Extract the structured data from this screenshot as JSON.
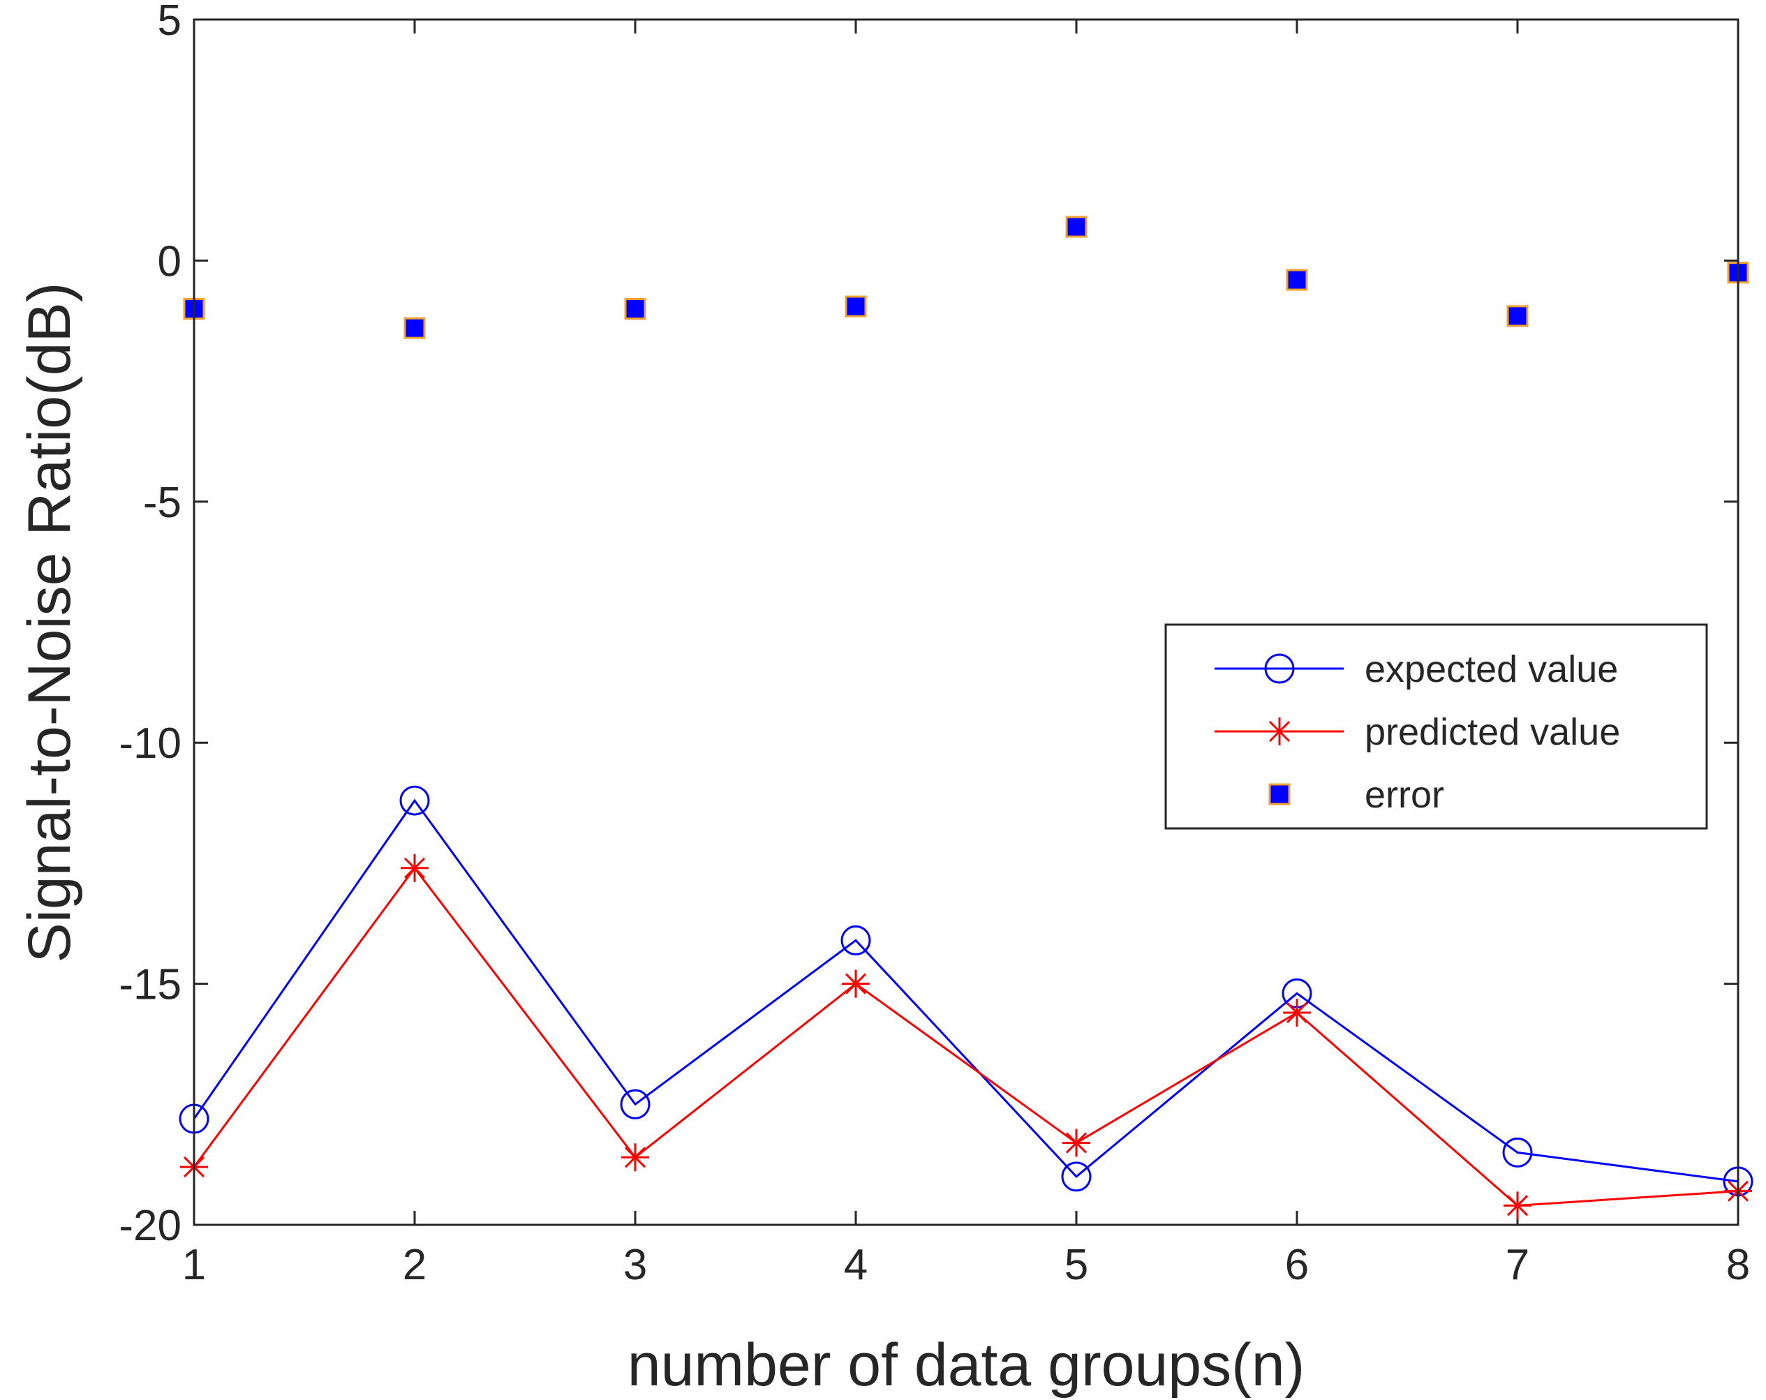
{
  "chart_data": {
    "type": "line",
    "title": "",
    "xlabel": "number of data groups(n)",
    "ylabel": "Signal-to-Noise Ratio(dB)",
    "xlim": [
      1,
      8
    ],
    "ylim": [
      -20,
      5
    ],
    "xticks": [
      1,
      2,
      3,
      4,
      5,
      6,
      7,
      8
    ],
    "yticks": [
      5,
      0,
      -5,
      -10,
      -15,
      -20
    ],
    "grid": false,
    "legend_position": "middle-right",
    "x": [
      1,
      2,
      3,
      4,
      5,
      6,
      7,
      8
    ],
    "series": [
      {
        "name": "expected value",
        "marker": "circle",
        "line": true,
        "color": "#0000ff",
        "values": [
          -17.8,
          -11.2,
          -17.5,
          -14.1,
          -19.0,
          -15.2,
          -18.5,
          -19.1
        ]
      },
      {
        "name": "predicted value",
        "marker": "asterisk",
        "line": true,
        "color": "#ff0000",
        "values": [
          -18.8,
          -12.6,
          -18.6,
          -15.0,
          -18.3,
          -15.6,
          -19.6,
          -19.3
        ]
      },
      {
        "name": "error",
        "marker": "square",
        "line": false,
        "color": "#0000ff",
        "edge_color": "#f0a030",
        "values": [
          -1.0,
          -1.4,
          -1.0,
          -0.95,
          0.7,
          -0.4,
          -1.15,
          -0.25
        ]
      }
    ]
  }
}
